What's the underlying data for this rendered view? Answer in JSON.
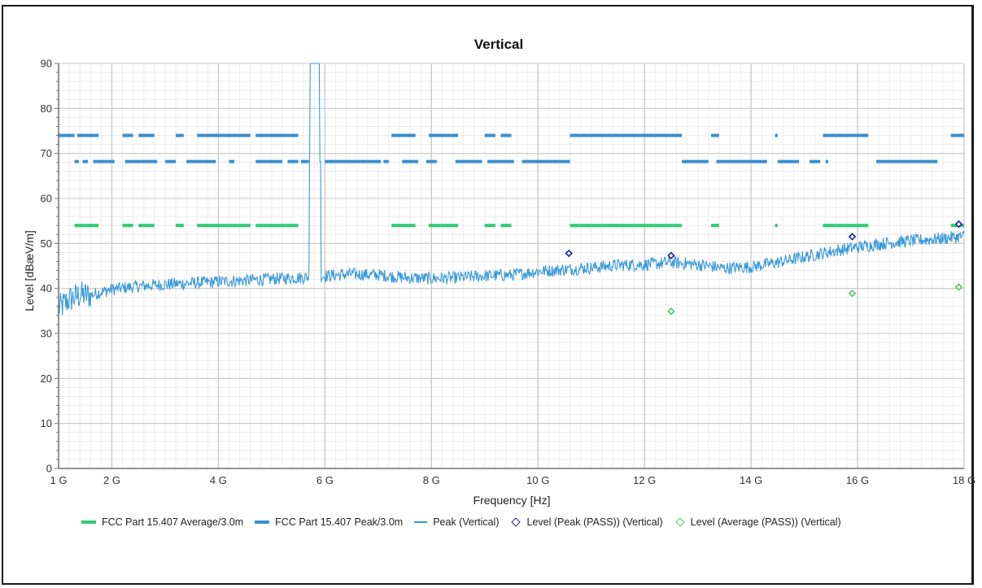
{
  "colors": {
    "avg_limit": "#2ecc71",
    "peak_limit": "#3a8fd0",
    "peak_trace": "#3a9ad9",
    "peak_marker": "#1f1fa0",
    "avg_marker": "#5cbf6a",
    "grid_major": "#c8c8c8",
    "grid_minor": "#ececec"
  },
  "chart_data": {
    "type": "line",
    "title": "Vertical",
    "xlabel": "Frequency [Hz]",
    "ylabel": "Level [dBæV/m]",
    "xlim": [
      1,
      18
    ],
    "ylim": [
      0,
      90
    ],
    "x_unit": "GHz",
    "x_tick_values": [
      1,
      2,
      4,
      6,
      8,
      10,
      12,
      14,
      16,
      18
    ],
    "x_tick_labels": [
      "1 G",
      "2 G",
      "4 G",
      "6 G",
      "8 G",
      "10 G",
      "12 G",
      "14 G",
      "16 G",
      "18 G"
    ],
    "y_tick_values": [
      0,
      10,
      20,
      30,
      40,
      50,
      60,
      70,
      80,
      90
    ],
    "y_tick_labels": [
      "0",
      "10",
      "20",
      "30",
      "40",
      "50",
      "60",
      "70",
      "80",
      "90"
    ],
    "grid": true,
    "legend_position": "bottom",
    "series": [
      {
        "name": "FCC Part 15.407 Average/3.0m",
        "style": "dashed-limit",
        "segments": [
          {
            "y": 54,
            "x": [
              [
                1.3,
                1.75
              ],
              [
                2.2,
                2.4
              ],
              [
                2.5,
                2.8
              ],
              [
                3.2,
                3.35
              ],
              [
                3.6,
                4.6
              ],
              [
                4.7,
                5.5
              ],
              [
                7.25,
                7.7
              ],
              [
                7.95,
                8.5
              ],
              [
                9.0,
                9.2
              ],
              [
                9.3,
                9.5
              ],
              [
                10.6,
                12.7
              ],
              [
                13.25,
                13.4
              ],
              [
                14.45,
                14.5
              ],
              [
                15.35,
                16.2
              ],
              [
                17.75,
                18
              ]
            ]
          }
        ]
      },
      {
        "name": "FCC Part 15.407 Peak/3.0m",
        "style": "dashed-limit",
        "segments": [
          {
            "y": 74,
            "x": [
              [
                1.0,
                1.3
              ],
              [
                1.35,
                1.75
              ],
              [
                2.2,
                2.4
              ],
              [
                2.5,
                2.8
              ],
              [
                3.2,
                3.35
              ],
              [
                3.6,
                4.6
              ],
              [
                4.7,
                5.5
              ],
              [
                7.25,
                7.7
              ],
              [
                7.95,
                8.5
              ],
              [
                9.0,
                9.2
              ],
              [
                9.3,
                9.5
              ],
              [
                10.6,
                12.7
              ],
              [
                13.25,
                13.4
              ],
              [
                14.45,
                14.5
              ],
              [
                15.35,
                16.2
              ],
              [
                17.75,
                18
              ]
            ]
          },
          {
            "y": 68.2,
            "x": [
              [
                1.3,
                1.38
              ],
              [
                1.45,
                1.55
              ],
              [
                1.65,
                2.05
              ],
              [
                2.25,
                2.85
              ],
              [
                3.0,
                3.2
              ],
              [
                3.4,
                3.95
              ],
              [
                4.2,
                4.3
              ],
              [
                4.7,
                5.2
              ],
              [
                5.3,
                5.5
              ],
              [
                5.55,
                5.7
              ],
              [
                6.0,
                7.05
              ],
              [
                7.1,
                7.2
              ],
              [
                7.45,
                7.75
              ],
              [
                7.9,
                8.1
              ],
              [
                8.45,
                8.95
              ],
              [
                9.05,
                9.55
              ],
              [
                9.7,
                10.6
              ],
              [
                12.7,
                13.2
              ],
              [
                13.35,
                14.3
              ],
              [
                14.5,
                14.9
              ],
              [
                15.1,
                15.3
              ],
              [
                15.4,
                15.45
              ],
              [
                16.35,
                17.5
              ]
            ]
          }
        ]
      },
      {
        "name": "Peak (Vertical)",
        "style": "trace",
        "x": [
          1.0,
          1.2,
          1.4,
          1.6,
          1.8,
          2.0,
          2.5,
          3.0,
          3.5,
          4.0,
          4.5,
          5.0,
          5.5,
          6.0,
          6.5,
          7.0,
          7.5,
          8.0,
          8.5,
          9.0,
          9.5,
          10.0,
          10.5,
          11.0,
          11.5,
          12.0,
          12.5,
          13.0,
          13.5,
          14.0,
          14.5,
          15.0,
          15.5,
          16.0,
          16.5,
          17.0,
          17.5,
          18.0
        ],
        "y": [
          35.5,
          37.5,
          38.5,
          38.5,
          39.2,
          39.8,
          40.5,
          40.9,
          41.2,
          41.5,
          41.8,
          42.1,
          42.4,
          42.8,
          43.2,
          43.0,
          42.4,
          42.2,
          42.4,
          42.8,
          43.0,
          43.8,
          44.2,
          44.6,
          45.2,
          45.3,
          45.8,
          45.3,
          44.5,
          44.8,
          45.8,
          47.0,
          48.2,
          49.2,
          50.0,
          50.6,
          51.0,
          51.6
        ]
      },
      {
        "name": "Level (Peak (PASS)) (Vertical)",
        "style": "marker",
        "x": [
          10.58,
          12.5,
          15.9,
          17.9
        ],
        "y": [
          47.8,
          47.3,
          51.5,
          54.3
        ]
      },
      {
        "name": "Level (Average (PASS)) (Vertical)",
        "style": "marker",
        "x": [
          12.5,
          15.9,
          17.9
        ],
        "y": [
          34.9,
          38.9,
          40.3
        ]
      }
    ],
    "spike": {
      "x": [
        5.7,
        5.8,
        5.92
      ],
      "y_top": 90
    }
  }
}
